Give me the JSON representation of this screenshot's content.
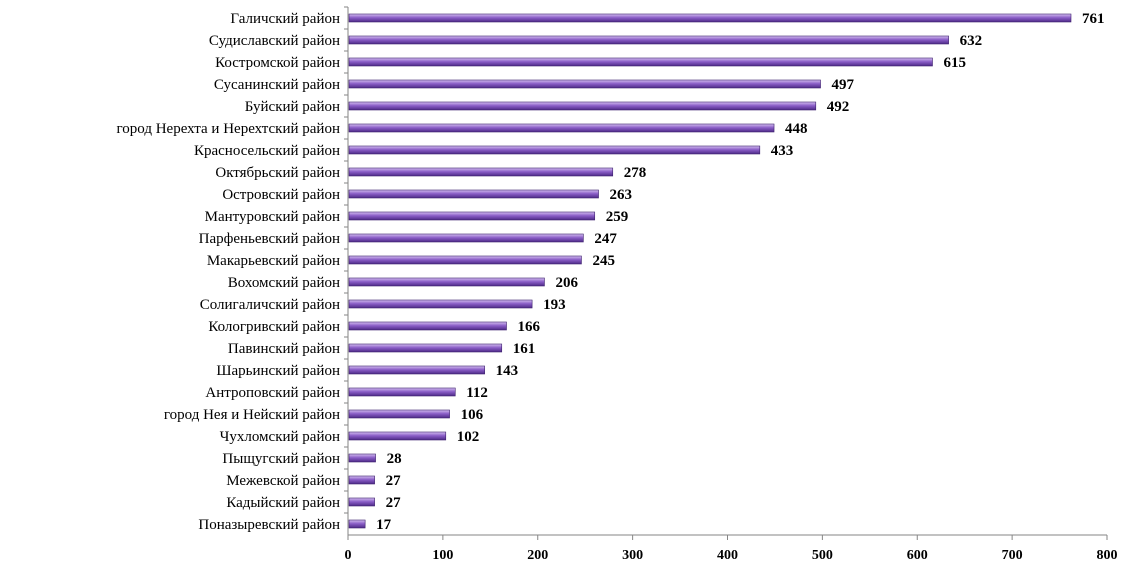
{
  "chart_data": {
    "type": "bar",
    "orientation": "horizontal",
    "categories": [
      "Галичский район",
      "Судиславский район",
      "Костромской район",
      "Сусанинский район",
      "Буйский район",
      "город Нерехта и Нерехтский район",
      "Красносельский район",
      "Октябрьский район",
      "Островский район",
      "Мантуровский район",
      "Парфеньевский район",
      "Макарьевский район",
      "Вохомский район",
      "Солигаличский район",
      "Кологривский район",
      "Павинский район",
      "Шарьинский район",
      "Антроповский район",
      "город Нея и Нейский район",
      "Чухломский район",
      "Пыщугский район",
      "Межевской район",
      "Кадыйский район",
      "Поназыревский район"
    ],
    "values": [
      761,
      632,
      615,
      497,
      492,
      448,
      433,
      278,
      263,
      259,
      247,
      245,
      206,
      193,
      166,
      161,
      143,
      112,
      106,
      102,
      28,
      27,
      27,
      17
    ],
    "xlim": [
      0,
      800
    ],
    "xticks": [
      "0",
      "100",
      "200",
      "300",
      "400",
      "500",
      "600",
      "700",
      "800"
    ],
    "grid": false,
    "bar_color": "#8c5fc8",
    "title": "",
    "xlabel": "",
    "ylabel": ""
  }
}
